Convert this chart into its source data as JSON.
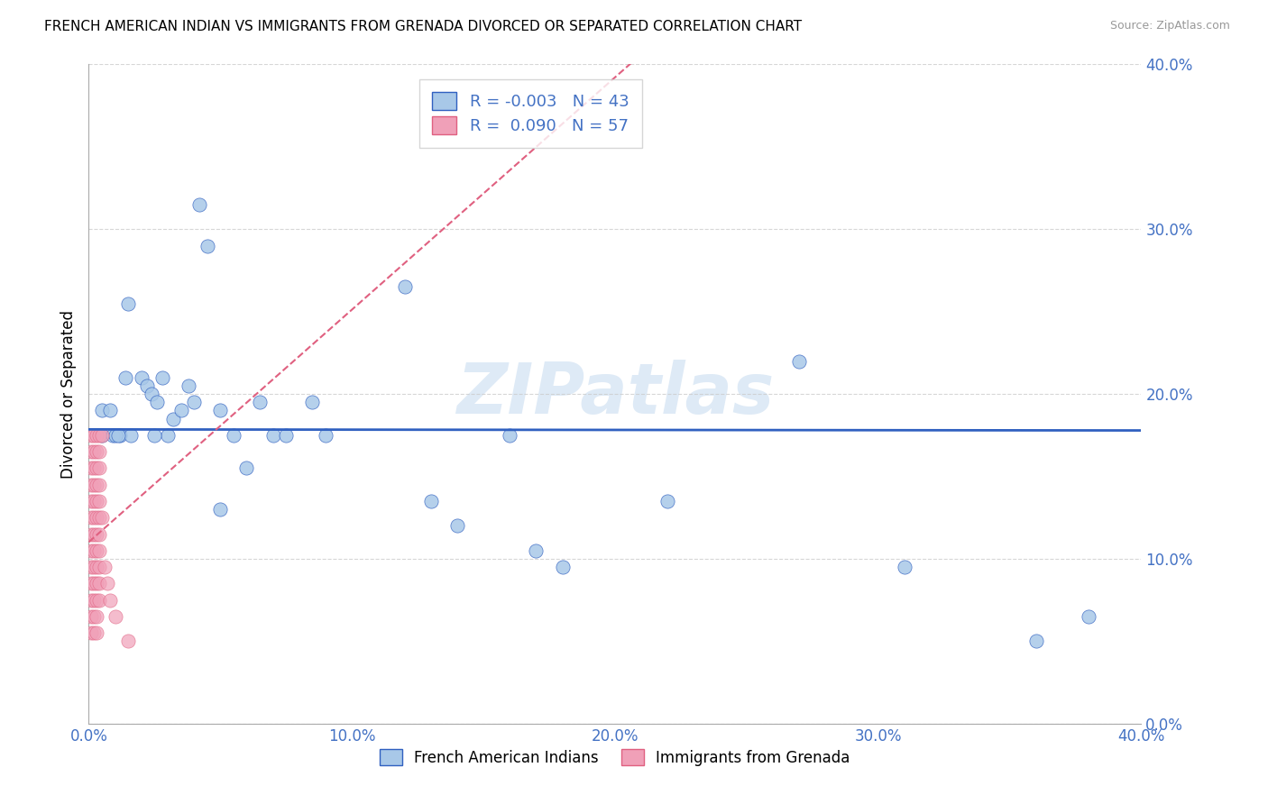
{
  "title": "FRENCH AMERICAN INDIAN VS IMMIGRANTS FROM GRENADA DIVORCED OR SEPARATED CORRELATION CHART",
  "source": "Source: ZipAtlas.com",
  "ylabel": "Divorced or Separated",
  "xmin": 0.0,
  "xmax": 0.4,
  "ymin": 0.0,
  "ymax": 0.4,
  "watermark": "ZIPatlas",
  "R_blue": -0.003,
  "N_blue": 43,
  "R_pink": 0.09,
  "N_pink": 57,
  "color_blue": "#A8C8E8",
  "color_pink": "#F0A0B8",
  "line_blue": "#3060C0",
  "line_pink": "#E06080",
  "blue_scatter": [
    [
      0.005,
      0.19
    ],
    [
      0.005,
      0.175
    ],
    [
      0.015,
      0.255
    ],
    [
      0.02,
      0.21
    ],
    [
      0.022,
      0.205
    ],
    [
      0.024,
      0.2
    ],
    [
      0.026,
      0.195
    ],
    [
      0.028,
      0.21
    ],
    [
      0.012,
      0.175
    ],
    [
      0.014,
      0.21
    ],
    [
      0.016,
      0.175
    ],
    [
      0.03,
      0.175
    ],
    [
      0.032,
      0.185
    ],
    [
      0.035,
      0.19
    ],
    [
      0.038,
      0.205
    ],
    [
      0.042,
      0.315
    ],
    [
      0.045,
      0.29
    ],
    [
      0.05,
      0.19
    ],
    [
      0.055,
      0.175
    ],
    [
      0.06,
      0.155
    ],
    [
      0.065,
      0.195
    ],
    [
      0.07,
      0.175
    ],
    [
      0.075,
      0.175
    ],
    [
      0.085,
      0.195
    ],
    [
      0.09,
      0.175
    ],
    [
      0.12,
      0.265
    ],
    [
      0.13,
      0.135
    ],
    [
      0.14,
      0.12
    ],
    [
      0.16,
      0.175
    ],
    [
      0.17,
      0.105
    ],
    [
      0.18,
      0.095
    ],
    [
      0.22,
      0.135
    ],
    [
      0.27,
      0.22
    ],
    [
      0.31,
      0.095
    ],
    [
      0.36,
      0.05
    ],
    [
      0.38,
      0.065
    ],
    [
      0.025,
      0.175
    ],
    [
      0.008,
      0.19
    ],
    [
      0.009,
      0.175
    ],
    [
      0.01,
      0.175
    ],
    [
      0.011,
      0.175
    ],
    [
      0.04,
      0.195
    ],
    [
      0.05,
      0.13
    ]
  ],
  "pink_scatter": [
    [
      0.001,
      0.175
    ],
    [
      0.001,
      0.165
    ],
    [
      0.001,
      0.155
    ],
    [
      0.001,
      0.145
    ],
    [
      0.001,
      0.135
    ],
    [
      0.001,
      0.125
    ],
    [
      0.001,
      0.115
    ],
    [
      0.001,
      0.105
    ],
    [
      0.001,
      0.095
    ],
    [
      0.001,
      0.085
    ],
    [
      0.001,
      0.075
    ],
    [
      0.001,
      0.065
    ],
    [
      0.001,
      0.055
    ],
    [
      0.002,
      0.175
    ],
    [
      0.002,
      0.165
    ],
    [
      0.002,
      0.155
    ],
    [
      0.002,
      0.145
    ],
    [
      0.002,
      0.135
    ],
    [
      0.002,
      0.125
    ],
    [
      0.002,
      0.115
    ],
    [
      0.002,
      0.105
    ],
    [
      0.002,
      0.095
    ],
    [
      0.002,
      0.085
    ],
    [
      0.002,
      0.075
    ],
    [
      0.002,
      0.065
    ],
    [
      0.002,
      0.055
    ],
    [
      0.003,
      0.175
    ],
    [
      0.003,
      0.165
    ],
    [
      0.003,
      0.155
    ],
    [
      0.003,
      0.145
    ],
    [
      0.003,
      0.135
    ],
    [
      0.003,
      0.125
    ],
    [
      0.003,
      0.115
    ],
    [
      0.003,
      0.105
    ],
    [
      0.003,
      0.095
    ],
    [
      0.003,
      0.085
    ],
    [
      0.003,
      0.075
    ],
    [
      0.003,
      0.065
    ],
    [
      0.003,
      0.055
    ],
    [
      0.004,
      0.175
    ],
    [
      0.004,
      0.165
    ],
    [
      0.004,
      0.155
    ],
    [
      0.004,
      0.145
    ],
    [
      0.004,
      0.135
    ],
    [
      0.004,
      0.125
    ],
    [
      0.004,
      0.115
    ],
    [
      0.004,
      0.105
    ],
    [
      0.004,
      0.095
    ],
    [
      0.004,
      0.085
    ],
    [
      0.004,
      0.075
    ],
    [
      0.005,
      0.175
    ],
    [
      0.005,
      0.125
    ],
    [
      0.006,
      0.095
    ],
    [
      0.007,
      0.085
    ],
    [
      0.008,
      0.075
    ],
    [
      0.01,
      0.065
    ],
    [
      0.015,
      0.05
    ]
  ]
}
